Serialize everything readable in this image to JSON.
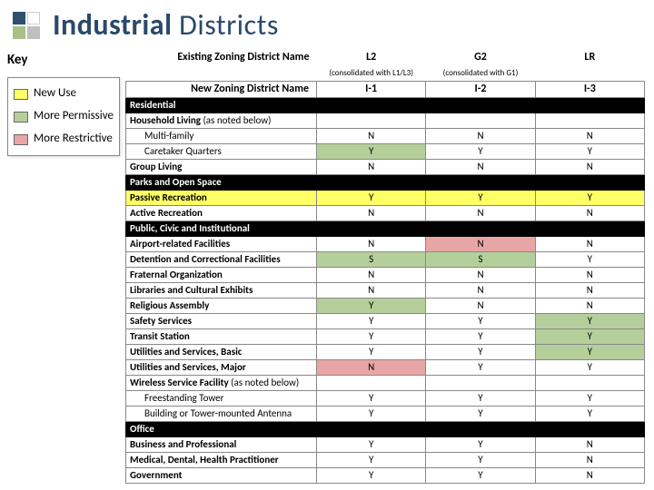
{
  "title": {
    "bold": "Industrial",
    "light": " Districts",
    "color_bold": "#2a4a6b",
    "color_light": "#2a4a6b"
  },
  "logo_colors": [
    "#2f4f6f",
    "#ffffff",
    "#a8c088",
    "#bfbfbf"
  ],
  "key": {
    "title": "Key",
    "items": [
      {
        "label": "New Use",
        "color": "#ffff66"
      },
      {
        "label": "More Permissive",
        "color": "#b5cf9a"
      },
      {
        "label": "More Restrictive",
        "color": "#e8a5a5"
      }
    ]
  },
  "highlight_colors": {
    "new": "#ffff66",
    "perm": "#b5cf9a",
    "rest": "#e8a5a5"
  },
  "table": {
    "header_existing": "Existing Zoning District Name",
    "header_new": "New Zoning District Name",
    "cols_old": [
      "L2",
      "G2",
      "LR"
    ],
    "cols_old_sub": [
      "(consolidated with L1/L3)",
      "(consolidated with G1)",
      ""
    ],
    "cols_new": [
      "I-1",
      "I-2",
      "I-3"
    ],
    "rows": [
      {
        "type": "section",
        "label": "Residential"
      },
      {
        "type": "row",
        "label": "Household Living",
        "note": " (as noted below)",
        "bold": true,
        "vals": [
          "",
          "",
          ""
        ]
      },
      {
        "type": "row",
        "label": "Multi-family",
        "indent": true,
        "vals": [
          "N",
          "N",
          "N"
        ]
      },
      {
        "type": "row",
        "label": "Caretaker Quarters",
        "indent": true,
        "vals": [
          "Y",
          "Y",
          "Y"
        ],
        "cell_hl": [
          "perm",
          "",
          ""
        ]
      },
      {
        "type": "row",
        "label": "Group Living",
        "bold": true,
        "vals": [
          "N",
          "N",
          "N"
        ]
      },
      {
        "type": "section",
        "label": "Parks and Open Space"
      },
      {
        "type": "row",
        "label": "Passive Recreation",
        "bold": true,
        "vals": [
          "Y",
          "Y",
          "Y"
        ],
        "row_hl": "new"
      },
      {
        "type": "row",
        "label": "Active Recreation",
        "bold": true,
        "vals": [
          "N",
          "N",
          "N"
        ]
      },
      {
        "type": "section",
        "label": "Public, Civic and Institutional"
      },
      {
        "type": "row",
        "label": "Airport-related Facilities",
        "bold": true,
        "vals": [
          "N",
          "N",
          "N"
        ],
        "cell_hl": [
          "",
          "rest",
          ""
        ]
      },
      {
        "type": "row",
        "label": "Detention and Correctional Facilities",
        "bold": true,
        "vals": [
          "S",
          "S",
          "Y"
        ],
        "cell_hl": [
          "perm",
          "perm",
          ""
        ]
      },
      {
        "type": "row",
        "label": "Fraternal Organization",
        "bold": true,
        "vals": [
          "N",
          "N",
          "N"
        ]
      },
      {
        "type": "row",
        "label": "Libraries and Cultural Exhibits",
        "bold": true,
        "vals": [
          "N",
          "N",
          "N"
        ]
      },
      {
        "type": "row",
        "label": "Religious Assembly",
        "bold": true,
        "vals": [
          "Y",
          "N",
          "N"
        ],
        "cell_hl": [
          "perm",
          "",
          ""
        ]
      },
      {
        "type": "row",
        "label": "Safety Services",
        "bold": true,
        "vals": [
          "Y",
          "Y",
          "Y"
        ],
        "cell_hl": [
          "",
          "",
          "perm"
        ]
      },
      {
        "type": "row",
        "label": "Transit Station",
        "bold": true,
        "vals": [
          "Y",
          "Y",
          "Y"
        ],
        "cell_hl": [
          "",
          "",
          "perm"
        ]
      },
      {
        "type": "row",
        "label": "Utilities and Services, Basic",
        "bold": true,
        "vals": [
          "Y",
          "Y",
          "Y"
        ],
        "cell_hl": [
          "",
          "",
          "perm"
        ]
      },
      {
        "type": "row",
        "label": "Utilities and Services, Major",
        "bold": true,
        "vals": [
          "N",
          "Y",
          "Y"
        ],
        "cell_hl": [
          "rest",
          "",
          ""
        ]
      },
      {
        "type": "row",
        "label": "Wireless Service Facility",
        "note": " (as noted below)",
        "bold": true,
        "vals": [
          "",
          "",
          ""
        ]
      },
      {
        "type": "row",
        "label": "Freestanding Tower",
        "indent": true,
        "vals": [
          "Y",
          "Y",
          "Y"
        ]
      },
      {
        "type": "row",
        "label": "Building or Tower-mounted Antenna",
        "indent": true,
        "vals": [
          "Y",
          "Y",
          "Y"
        ]
      },
      {
        "type": "section",
        "label": "Office"
      },
      {
        "type": "row",
        "label": "Business and Professional",
        "bold": true,
        "vals": [
          "Y",
          "Y",
          "N"
        ]
      },
      {
        "type": "row",
        "label": "Medical, Dental, Health Practitioner",
        "bold": true,
        "vals": [
          "Y",
          "Y",
          "N"
        ]
      },
      {
        "type": "row",
        "label": "Government",
        "bold": true,
        "vals": [
          "Y",
          "Y",
          "N"
        ]
      }
    ]
  }
}
